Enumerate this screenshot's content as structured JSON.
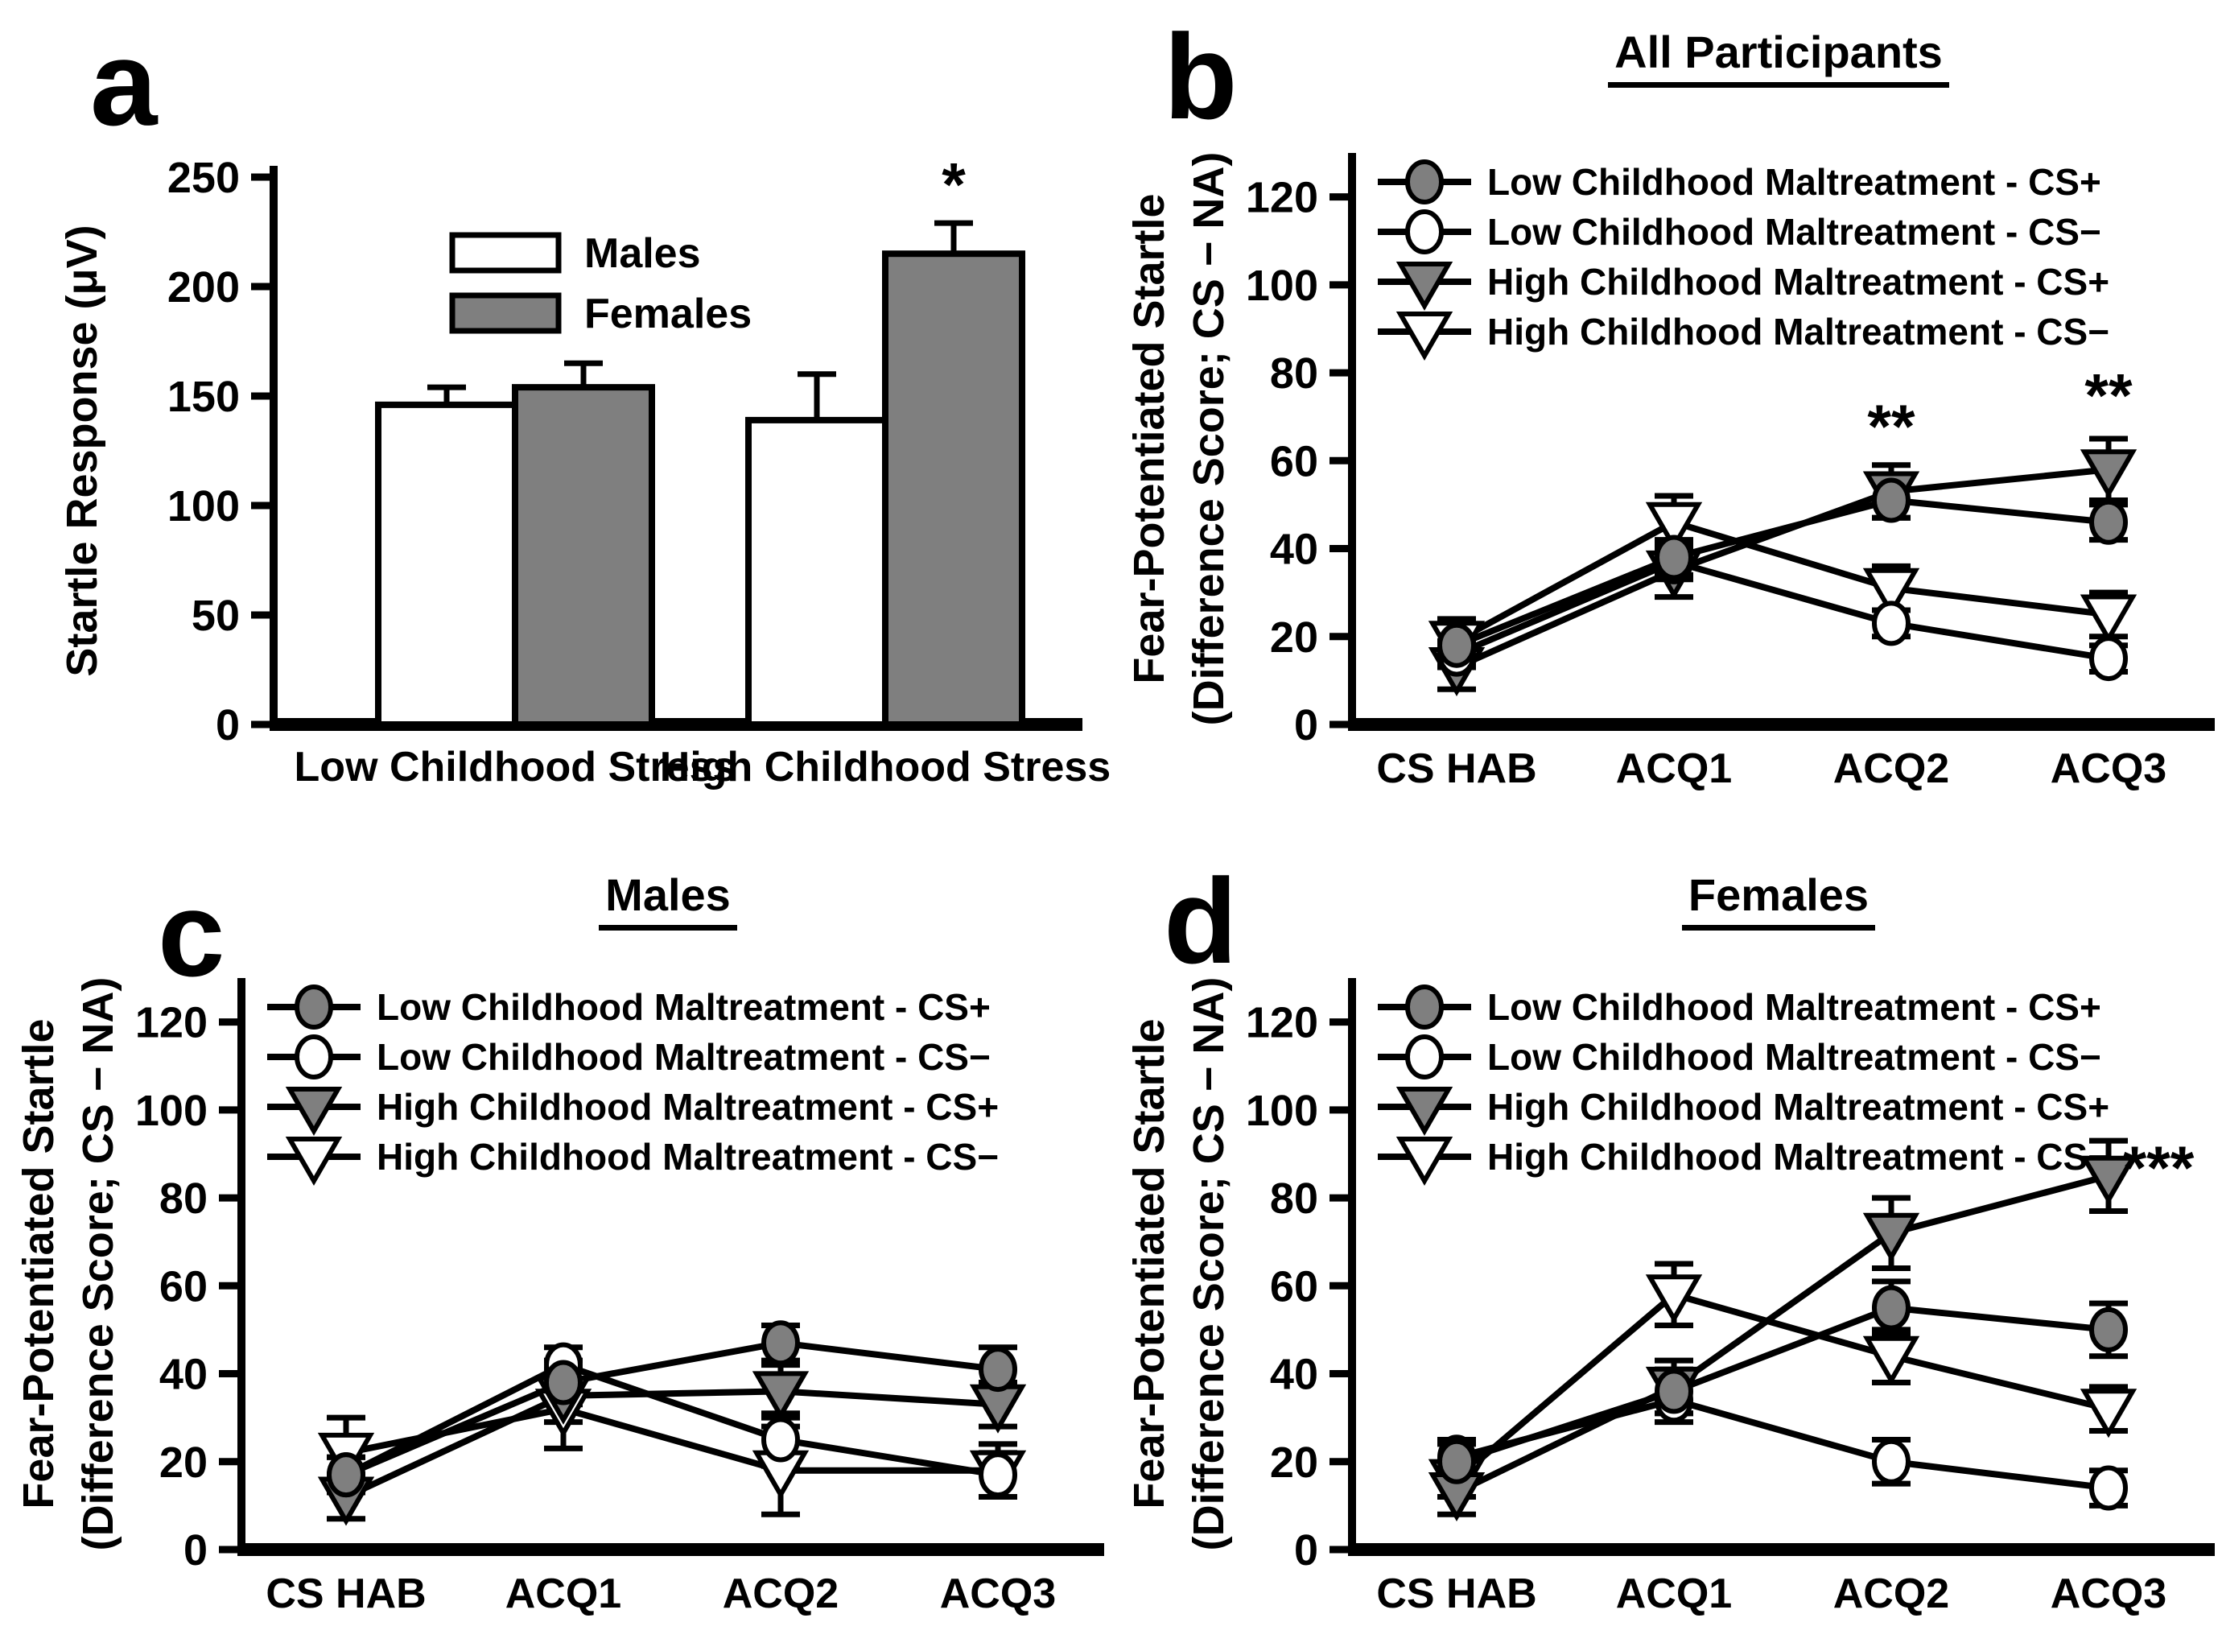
{
  "figure": {
    "background": "#ffffff",
    "line_color": "#000000",
    "gray_fill": "#7f7f7f",
    "white_fill": "#ffffff"
  },
  "chart_data": [
    {
      "type": "bar",
      "panel_label": "a",
      "title": "",
      "ylabel": "Startle Response (μV)",
      "ylim": [
        0,
        250
      ],
      "yticks": [
        0,
        50,
        100,
        150,
        200,
        250
      ],
      "grid": "off",
      "legend_position": "upper-left-inside",
      "categories": [
        "Low Childhood Stress",
        "High Childhood Stress"
      ],
      "series": [
        {
          "name": "Males",
          "fill": "#ffffff",
          "values": [
            146,
            139
          ],
          "errors_up": [
            8,
            21
          ]
        },
        {
          "name": "Females",
          "fill": "#7f7f7f",
          "values": [
            154,
            215
          ],
          "errors_up": [
            11,
            14
          ]
        }
      ],
      "annotations": [
        {
          "text": "*",
          "category_index": 1,
          "series": "Females",
          "value": 237
        }
      ]
    },
    {
      "type": "line",
      "panel_label": "b",
      "title": "All Participants",
      "ylabel_line1": "Fear-Potentiated Startle",
      "ylabel_line2": "(Difference Score; CS − NA)",
      "ylim": [
        0,
        130
      ],
      "yticks": [
        0,
        20,
        40,
        60,
        80,
        100,
        120
      ],
      "grid": "off",
      "legend_position": "upper-left-inside",
      "categories": [
        "CS HAB",
        "ACQ1",
        "ACQ2",
        "ACQ3"
      ],
      "series": [
        {
          "name": "Low Childhood Maltreatment - CS+",
          "marker": "circle",
          "fill": "#7f7f7f",
          "values": [
            18,
            38,
            51,
            46
          ],
          "errors": [
            4,
            4,
            4,
            4
          ]
        },
        {
          "name": "Low Childhood Maltreatment - CS−",
          "marker": "circle",
          "fill": "#ffffff",
          "values": [
            16,
            37,
            23,
            15
          ],
          "errors": [
            3,
            4,
            3,
            3
          ]
        },
        {
          "name": "High Childhood Maltreatment - CS+",
          "marker": "triangle-down",
          "fill": "#7f7f7f",
          "values": [
            13,
            35,
            53,
            58
          ],
          "errors": [
            5,
            6,
            6,
            7
          ]
        },
        {
          "name": "High Childhood Maltreatment - CS−",
          "marker": "triangle-down",
          "fill": "#ffffff",
          "values": [
            19,
            46,
            31,
            25
          ],
          "errors": [
            5,
            6,
            5,
            5
          ]
        }
      ],
      "annotations": [
        {
          "text": "**",
          "category_index": 2,
          "value": 63,
          "dx": 0
        },
        {
          "text": "**",
          "category_index": 3,
          "value": 70,
          "dx": 0
        }
      ]
    },
    {
      "type": "line",
      "panel_label": "c",
      "title": "Males",
      "ylabel_line1": "Fear-Potentiated Startle",
      "ylabel_line2": "(Difference Score; CS − NA)",
      "ylim": [
        0,
        130
      ],
      "yticks": [
        0,
        20,
        40,
        60,
        80,
        100,
        120
      ],
      "grid": "off",
      "legend_position": "upper-left-inside",
      "categories": [
        "CS HAB",
        "ACQ1",
        "ACQ2",
        "ACQ3"
      ],
      "series": [
        {
          "name": "Low Childhood Maltreatment - CS+",
          "marker": "circle",
          "fill": "#7f7f7f",
          "values": [
            17,
            38,
            47,
            41
          ],
          "errors": [
            4,
            5,
            4,
            5
          ]
        },
        {
          "name": "Low Childhood Maltreatment - CS−",
          "marker": "circle",
          "fill": "#ffffff",
          "values": [
            17,
            42,
            25,
            17
          ],
          "errors": [
            4,
            4,
            6,
            5
          ]
        },
        {
          "name": "High Childhood Maltreatment - CS+",
          "marker": "triangle-down",
          "fill": "#7f7f7f",
          "values": [
            12,
            35,
            36,
            33
          ],
          "errors": [
            5,
            6,
            6,
            5
          ]
        },
        {
          "name": "High Childhood Maltreatment - CS−",
          "marker": "triangle-down",
          "fill": "#ffffff",
          "values": [
            22,
            32,
            18,
            18
          ],
          "errors": [
            8,
            9,
            10,
            6
          ]
        }
      ],
      "annotations": []
    },
    {
      "type": "line",
      "panel_label": "d",
      "title": "Females",
      "ylabel_line1": "Fear-Potentiated Startle",
      "ylabel_line2": "(Difference Score; CS − NA)",
      "ylim": [
        0,
        130
      ],
      "yticks": [
        0,
        20,
        40,
        60,
        80,
        100,
        120
      ],
      "grid": "off",
      "legend_position": "upper-left-inside",
      "categories": [
        "CS HAB",
        "ACQ1",
        "ACQ2",
        "ACQ3"
      ],
      "series": [
        {
          "name": "Low Childhood Maltreatment - CS+",
          "marker": "circle",
          "fill": "#7f7f7f",
          "values": [
            20,
            36,
            55,
            50
          ],
          "errors": [
            4,
            5,
            6,
            6
          ]
        },
        {
          "name": "Low Childhood Maltreatment - CS−",
          "marker": "circle",
          "fill": "#ffffff",
          "values": [
            21,
            34,
            20,
            14
          ],
          "errors": [
            4,
            5,
            5,
            4
          ]
        },
        {
          "name": "High Childhood Maltreatment - CS+",
          "marker": "triangle-down",
          "fill": "#7f7f7f",
          "values": [
            13,
            37,
            72,
            85
          ],
          "errors": [
            5,
            6,
            8,
            8
          ]
        },
        {
          "name": "High Childhood Maltreatment - CS−",
          "marker": "triangle-down",
          "fill": "#ffffff",
          "values": [
            16,
            58,
            44,
            32
          ],
          "errors": [
            4,
            7,
            6,
            5
          ]
        }
      ],
      "annotations": [
        {
          "text": "***",
          "category_index": 3,
          "value": 82,
          "dx": 62
        }
      ]
    }
  ]
}
